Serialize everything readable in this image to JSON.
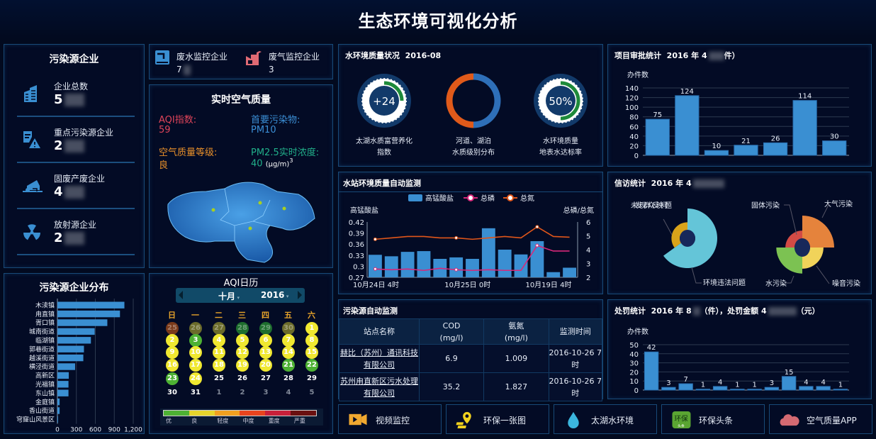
{
  "header": {
    "title": "生态环境可视化分析"
  },
  "enterprises": {
    "title": "污染源企业",
    "items": [
      {
        "icon": "building-icon",
        "label": "企业总数",
        "value": "5"
      },
      {
        "icon": "warning-document-icon",
        "label": "重点污染源企业",
        "value": "2"
      },
      {
        "icon": "dump-truck-icon",
        "label": "固废产废企业",
        "value": "4"
      },
      {
        "icon": "radiation-icon",
        "label": "放射源企业",
        "value": "2"
      }
    ]
  },
  "monitor": {
    "wastewater": {
      "label": "废水监控企业",
      "value": "7",
      "icon": "wastewater-icon"
    },
    "wastegas": {
      "label": "废气监控企业",
      "value": "3",
      "icon": "factory-icon"
    }
  },
  "air": {
    "title": "实时空气质量",
    "aqi_label": "AQI指数:",
    "aqi_value": "59",
    "pollutant_label": "首要污染物:",
    "pollutant_value": "PM10",
    "level_label": "空气质量等级:",
    "level_value": "良",
    "pm25_label": "PM2.5实时浓度:",
    "pm25_value": "40",
    "pm25_unit": "(μg/m)",
    "pm25_sup": "3",
    "colors": {
      "aqi": "#e0445a",
      "pollutant": "#3b8fd6",
      "level": "#e8902a",
      "pm25": "#21b08a"
    }
  },
  "calendar": {
    "title": "AQI日历",
    "month": "十月",
    "year": "2016",
    "weekdays": [
      "日",
      "一",
      "二",
      "三",
      "四",
      "五",
      "六"
    ],
    "days": [
      {
        "d": "25",
        "c": "#7a3a1a",
        "dim": true
      },
      {
        "d": "26",
        "c": "#6b6b2a",
        "dim": true
      },
      {
        "d": "27",
        "c": "#6b6b2a",
        "dim": true
      },
      {
        "d": "28",
        "c": "#1e6e2e",
        "dim": true
      },
      {
        "d": "29",
        "c": "#1e6e2e",
        "dim": true
      },
      {
        "d": "30",
        "c": "#6b6b2a",
        "dim": true
      },
      {
        "d": "1",
        "c": "#f0e830"
      },
      {
        "d": "2",
        "c": "#f0e830"
      },
      {
        "d": "3",
        "c": "#4db133"
      },
      {
        "d": "4",
        "c": "#f0e830"
      },
      {
        "d": "5",
        "c": "#f0e830"
      },
      {
        "d": "6",
        "c": "#f0e830"
      },
      {
        "d": "7",
        "c": "#f0e830"
      },
      {
        "d": "8",
        "c": "#f0e830"
      },
      {
        "d": "9",
        "c": "#f0e830"
      },
      {
        "d": "10",
        "c": "#f0e830"
      },
      {
        "d": "11",
        "c": "#f0e830"
      },
      {
        "d": "12",
        "c": "#f0e830"
      },
      {
        "d": "13",
        "c": "#f0e830"
      },
      {
        "d": "14",
        "c": "#f0e830"
      },
      {
        "d": "15",
        "c": "#f0e830"
      },
      {
        "d": "16",
        "c": "#f0e830"
      },
      {
        "d": "17",
        "c": "#f0e830"
      },
      {
        "d": "18",
        "c": "#f0e830"
      },
      {
        "d": "19",
        "c": "#f0e830"
      },
      {
        "d": "20",
        "c": "#f0e830"
      },
      {
        "d": "21",
        "c": "#4db133"
      },
      {
        "d": "22",
        "c": "#4db133"
      },
      {
        "d": "23",
        "c": "#4db133"
      },
      {
        "d": "24",
        "c": "#f0e830"
      },
      {
        "d": "25",
        "c": ""
      },
      {
        "d": "26",
        "c": ""
      },
      {
        "d": "27",
        "c": ""
      },
      {
        "d": "28",
        "c": ""
      },
      {
        "d": "29",
        "c": ""
      },
      {
        "d": "30",
        "c": ""
      },
      {
        "d": "31",
        "c": ""
      },
      {
        "d": "1",
        "c": "",
        "next": true
      },
      {
        "d": "2",
        "c": "",
        "next": true
      },
      {
        "d": "3",
        "c": "",
        "next": true
      },
      {
        "d": "4",
        "c": "",
        "next": true
      },
      {
        "d": "5",
        "c": "",
        "next": true
      }
    ],
    "legend": [
      {
        "label": "优",
        "color": "#4db133"
      },
      {
        "label": "良",
        "color": "#e6d42c"
      },
      {
        "label": "轻度",
        "color": "#f0a020"
      },
      {
        "label": "中度",
        "color": "#e8441e"
      },
      {
        "label": "重度",
        "color": "#c8203a"
      },
      {
        "label": "严重",
        "color": "#6a1010"
      }
    ]
  },
  "water_quality": {
    "title": "水环境质量状况",
    "date": "2016-08",
    "gauges": [
      {
        "value": "+24",
        "label1": "太湖水质富营养化",
        "label2": "指数",
        "fill": 0.25
      },
      {
        "value": "",
        "label1": "河道、湖泊",
        "label2": "水质级别分布"
      },
      {
        "value": "50%",
        "label1": "水环境质量",
        "label2": "地表水达标率",
        "fill": 0.5
      }
    ],
    "donut": [
      {
        "share": 0.5,
        "color": "#2e6fb8"
      },
      {
        "share": 0.5,
        "color": "#e05a1a"
      }
    ]
  },
  "station": {
    "title": "水站环境质量自动监测"
  },
  "approval": {
    "title": "项目审批统计",
    "subtitle": "2016 年 4",
    "suffix": "件）"
  },
  "petition": {
    "title": "信访统计",
    "subtitle": "2016 年 4"
  },
  "penalty": {
    "title": "处罚统计",
    "subtitle_a": "2016 年 8",
    "subtitle_b": "（件），处罚金额 4",
    "subtitle_c": "（元）"
  },
  "pollution_monitor": {
    "title": "污染源自动监测",
    "columns": [
      "站点名称",
      "COD\n(mg/l)",
      "氨氮\n(mg/l)",
      "监测时间"
    ],
    "rows": [
      {
        "name": "赫比（苏州）通讯科技有限公司",
        "cod": "6.9",
        "nh": "1.009",
        "time": "2016-10-26 7时"
      },
      {
        "name": "苏州甪直新区污水处理有限公司",
        "cod": "35.2",
        "nh": "1.827",
        "time": "2016-10-26 7时"
      }
    ]
  },
  "shortcuts": [
    {
      "label": "视频监控",
      "icon": "video-camera-icon"
    },
    {
      "label": "环保一张图",
      "icon": "map-pin-icon"
    },
    {
      "label": "太湖水环境",
      "icon": "water-drop-icon"
    },
    {
      "label": "环保头条",
      "icon": "news-app-icon",
      "icon_text": "环保",
      "icon_sub": "头条"
    },
    {
      "label": "空气质量APP",
      "icon": "cloud-icon"
    }
  ],
  "chart_data": [
    {
      "id": "distribution",
      "type": "bar",
      "orientation": "horizontal",
      "title": "污染源企业分布",
      "categories": [
        "木渎镇",
        "甪直镇",
        "胥口镇",
        "城南街道",
        "临湖镇",
        "郭巷街道",
        "越溪街道",
        "横泾街道",
        "高新区",
        "光福镇",
        "东山镇",
        "金庭镇",
        "香山街道",
        "穹窿山风景区"
      ],
      "values": [
        1060,
        990,
        790,
        590,
        530,
        420,
        410,
        280,
        180,
        175,
        175,
        35,
        35,
        10
      ],
      "xlim": [
        0,
        1200
      ],
      "xticks": [
        "0",
        "300",
        "600",
        "900",
        "1,200"
      ],
      "grid": true,
      "color": "#3a8fd2"
    },
    {
      "id": "station",
      "type": "bar+line",
      "legend": [
        "高锰酸盐",
        "总磷",
        "总氮"
      ],
      "legend_position": "top",
      "ylabel_left": "高锰酸盐",
      "ylabel_right": "总磷/总氮",
      "yticks_left": [
        "0.42",
        "0.39",
        "0.36",
        "0.33",
        "0.3",
        "0.27"
      ],
      "ylim_left": [
        0.27,
        0.42
      ],
      "yticks_right": [
        "6",
        "5",
        "4",
        "3",
        "2"
      ],
      "ylim_right": [
        2,
        6
      ],
      "xlabels": [
        "10月24日 4时",
        "10月25日 0时",
        "10月19日 4时"
      ],
      "series": [
        {
          "name": "高锰酸盐",
          "type": "bar",
          "color": "#3a8fd2",
          "values": [
            0.331,
            0.327,
            0.339,
            0.341,
            0.32,
            0.324,
            0.32,
            0.403,
            0.345,
            0.332,
            0.368,
            0.284,
            0.296
          ]
        },
        {
          "name": "总磷",
          "type": "line",
          "color": "#d8287a",
          "values": [
            2.6,
            2.55,
            2.6,
            2.5,
            2.65,
            2.55,
            2.5,
            2.55,
            2.5,
            2.5,
            4.3,
            3.9,
            3.9
          ]
        },
        {
          "name": "总氮",
          "type": "line",
          "color": "#e0561a",
          "values": [
            4.75,
            4.85,
            4.95,
            4.95,
            4.85,
            4.85,
            4.75,
            4.85,
            4.95,
            4.85,
            5.65,
            4.95,
            4.9
          ]
        }
      ]
    },
    {
      "id": "approval",
      "type": "bar",
      "ylabel": "办件数",
      "values": [
        75,
        124,
        10,
        21,
        26,
        114,
        30
      ],
      "ylim": [
        0,
        140
      ],
      "yticks": [
        "140",
        "120",
        "100",
        "80",
        "60",
        "40",
        "20",
        "0"
      ],
      "grid": true,
      "color": "#3a8fd2"
    },
    {
      "id": "petition",
      "type": "pie",
      "rose": true,
      "pies": [
        {
          "slices": [
            {
              "name": "环境违法问题",
              "value": 65,
              "color": "#64c5d8"
            },
            {
              "name": "未发现群众反映问题",
              "value": 35,
              "color": "#d9a31a"
            }
          ]
        },
        {
          "slices": [
            {
              "name": "大气污染",
              "value": 45,
              "color": "#e5833c"
            },
            {
              "name": "噪音污染",
              "value": 25,
              "color": "#f1d35a"
            },
            {
              "name": "水污染",
              "value": 34,
              "color": "#7cc252"
            },
            {
              "name": "固体污染",
              "value": 17,
              "color": "#d24b45"
            }
          ]
        }
      ]
    },
    {
      "id": "penalty",
      "type": "bar",
      "ylabel": "办件数",
      "values": [
        42,
        3,
        7,
        1,
        4,
        1,
        1,
        3,
        15,
        4,
        4,
        1
      ],
      "ylim": [
        0,
        50
      ],
      "yticks": [
        "50",
        "40",
        "30",
        "20",
        "10",
        "0"
      ],
      "grid": true,
      "color": "#3a8fd2"
    }
  ]
}
